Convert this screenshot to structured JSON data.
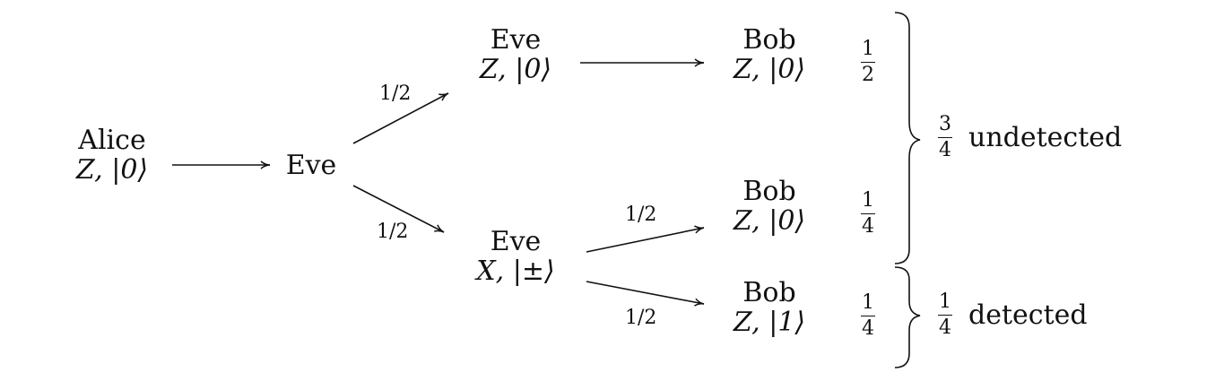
{
  "nodes": {
    "alice": {
      "name": "Alice",
      "state": "Z, |0⟩"
    },
    "eve": {
      "name": "Eve"
    },
    "eve_z": {
      "name": "Eve",
      "state": "Z, |0⟩"
    },
    "eve_x": {
      "name": "Eve",
      "state": "X, |±⟩"
    },
    "bob_top": {
      "name": "Bob",
      "state": "Z, |0⟩"
    },
    "bob_mid": {
      "name": "Bob",
      "state": "Z, |0⟩"
    },
    "bob_bot": {
      "name": "Bob",
      "state": "Z, |1⟩"
    }
  },
  "edge_labels": {
    "eve_to_eve_z": "1/2",
    "eve_to_eve_x": "1/2",
    "eve_x_to_bob_mid": "1/2",
    "eve_x_to_bob_bot": "1/2"
  },
  "outcome_probs": {
    "top": {
      "num": "1",
      "den": "2"
    },
    "mid": {
      "num": "1",
      "den": "4"
    },
    "bot": {
      "num": "1",
      "den": "4"
    }
  },
  "results": {
    "undetected": {
      "num": "3",
      "den": "4",
      "label": "undetected"
    },
    "detected": {
      "num": "1",
      "den": "4",
      "label": "detected"
    }
  }
}
